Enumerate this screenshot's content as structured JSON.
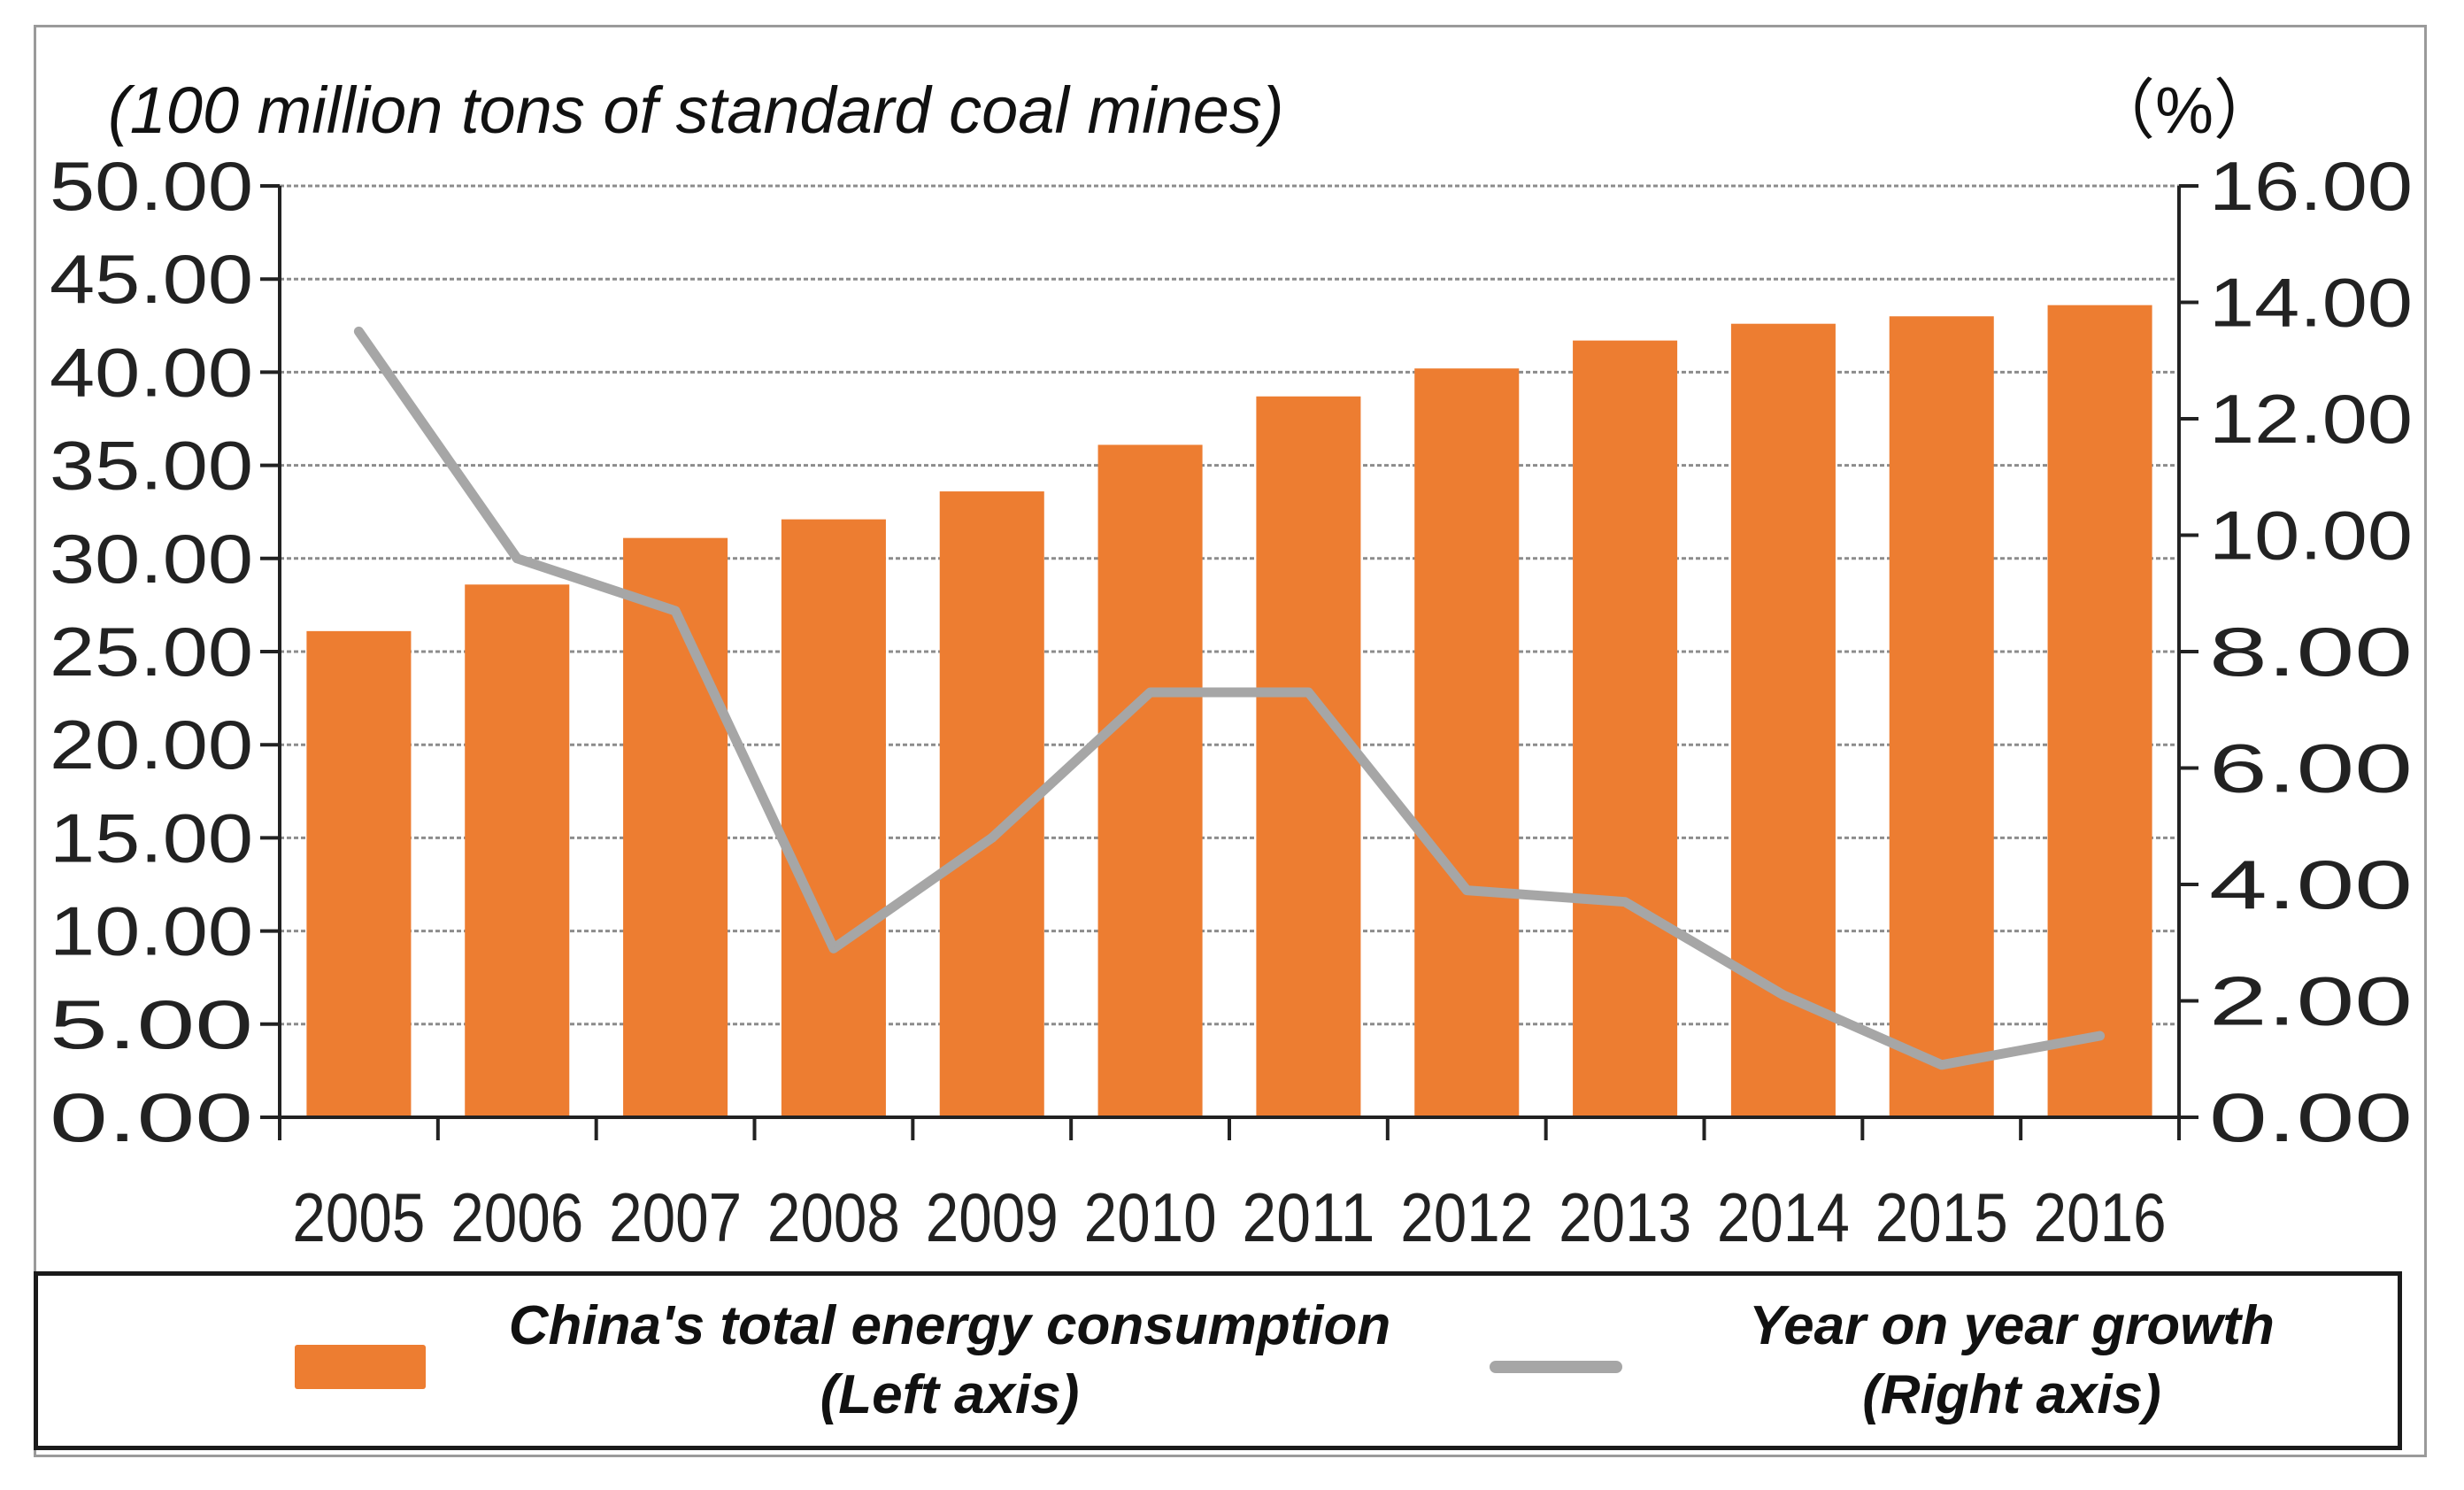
{
  "chart_data": {
    "type": "bar+line",
    "categories": [
      "2005",
      "2006",
      "2007",
      "2008",
      "2009",
      "2010",
      "2011",
      "2012",
      "2013",
      "2014",
      "2015",
      "2016"
    ],
    "left_axis": {
      "unit_label": "(100 million tons of standard coal mines)",
      "min": 0,
      "max": 50,
      "step": 5,
      "tick_labels": [
        "0.00",
        "5.00",
        "10.00",
        "15.00",
        "20.00",
        "25.00",
        "30.00",
        "35.00",
        "40.00",
        "45.00",
        "50.00"
      ]
    },
    "right_axis": {
      "unit_label": "（%）",
      "min": 0,
      "max": 16,
      "step": 2,
      "tick_labels": [
        "0.00",
        "2.00",
        "4.00",
        "6.00",
        "8.00",
        "10.00",
        "12.00",
        "14.00",
        "16.00"
      ]
    },
    "series": [
      {
        "name": "China's total energy consumption (Left axis)",
        "type": "bar",
        "axis": "left",
        "color": "#ED7D31",
        "values": [
          26.1,
          28.6,
          31.1,
          32.1,
          33.6,
          36.1,
          38.7,
          40.2,
          41.7,
          42.6,
          43.0,
          43.6
        ]
      },
      {
        "name": "Year on year growth (Right axis)",
        "type": "line",
        "axis": "right",
        "color": "#A6A6A6",
        "values": [
          13.5,
          9.6,
          8.7,
          2.9,
          4.8,
          7.3,
          7.3,
          3.9,
          3.7,
          2.1,
          0.9,
          1.4
        ]
      }
    ],
    "grid": true,
    "legend_position": "bottom"
  },
  "legend": {
    "bar_line1": "China's total energy consumption",
    "bar_line2": "(Left axis)",
    "line_line1": "Year on year growth",
    "line_line2": "(Right axis)"
  }
}
